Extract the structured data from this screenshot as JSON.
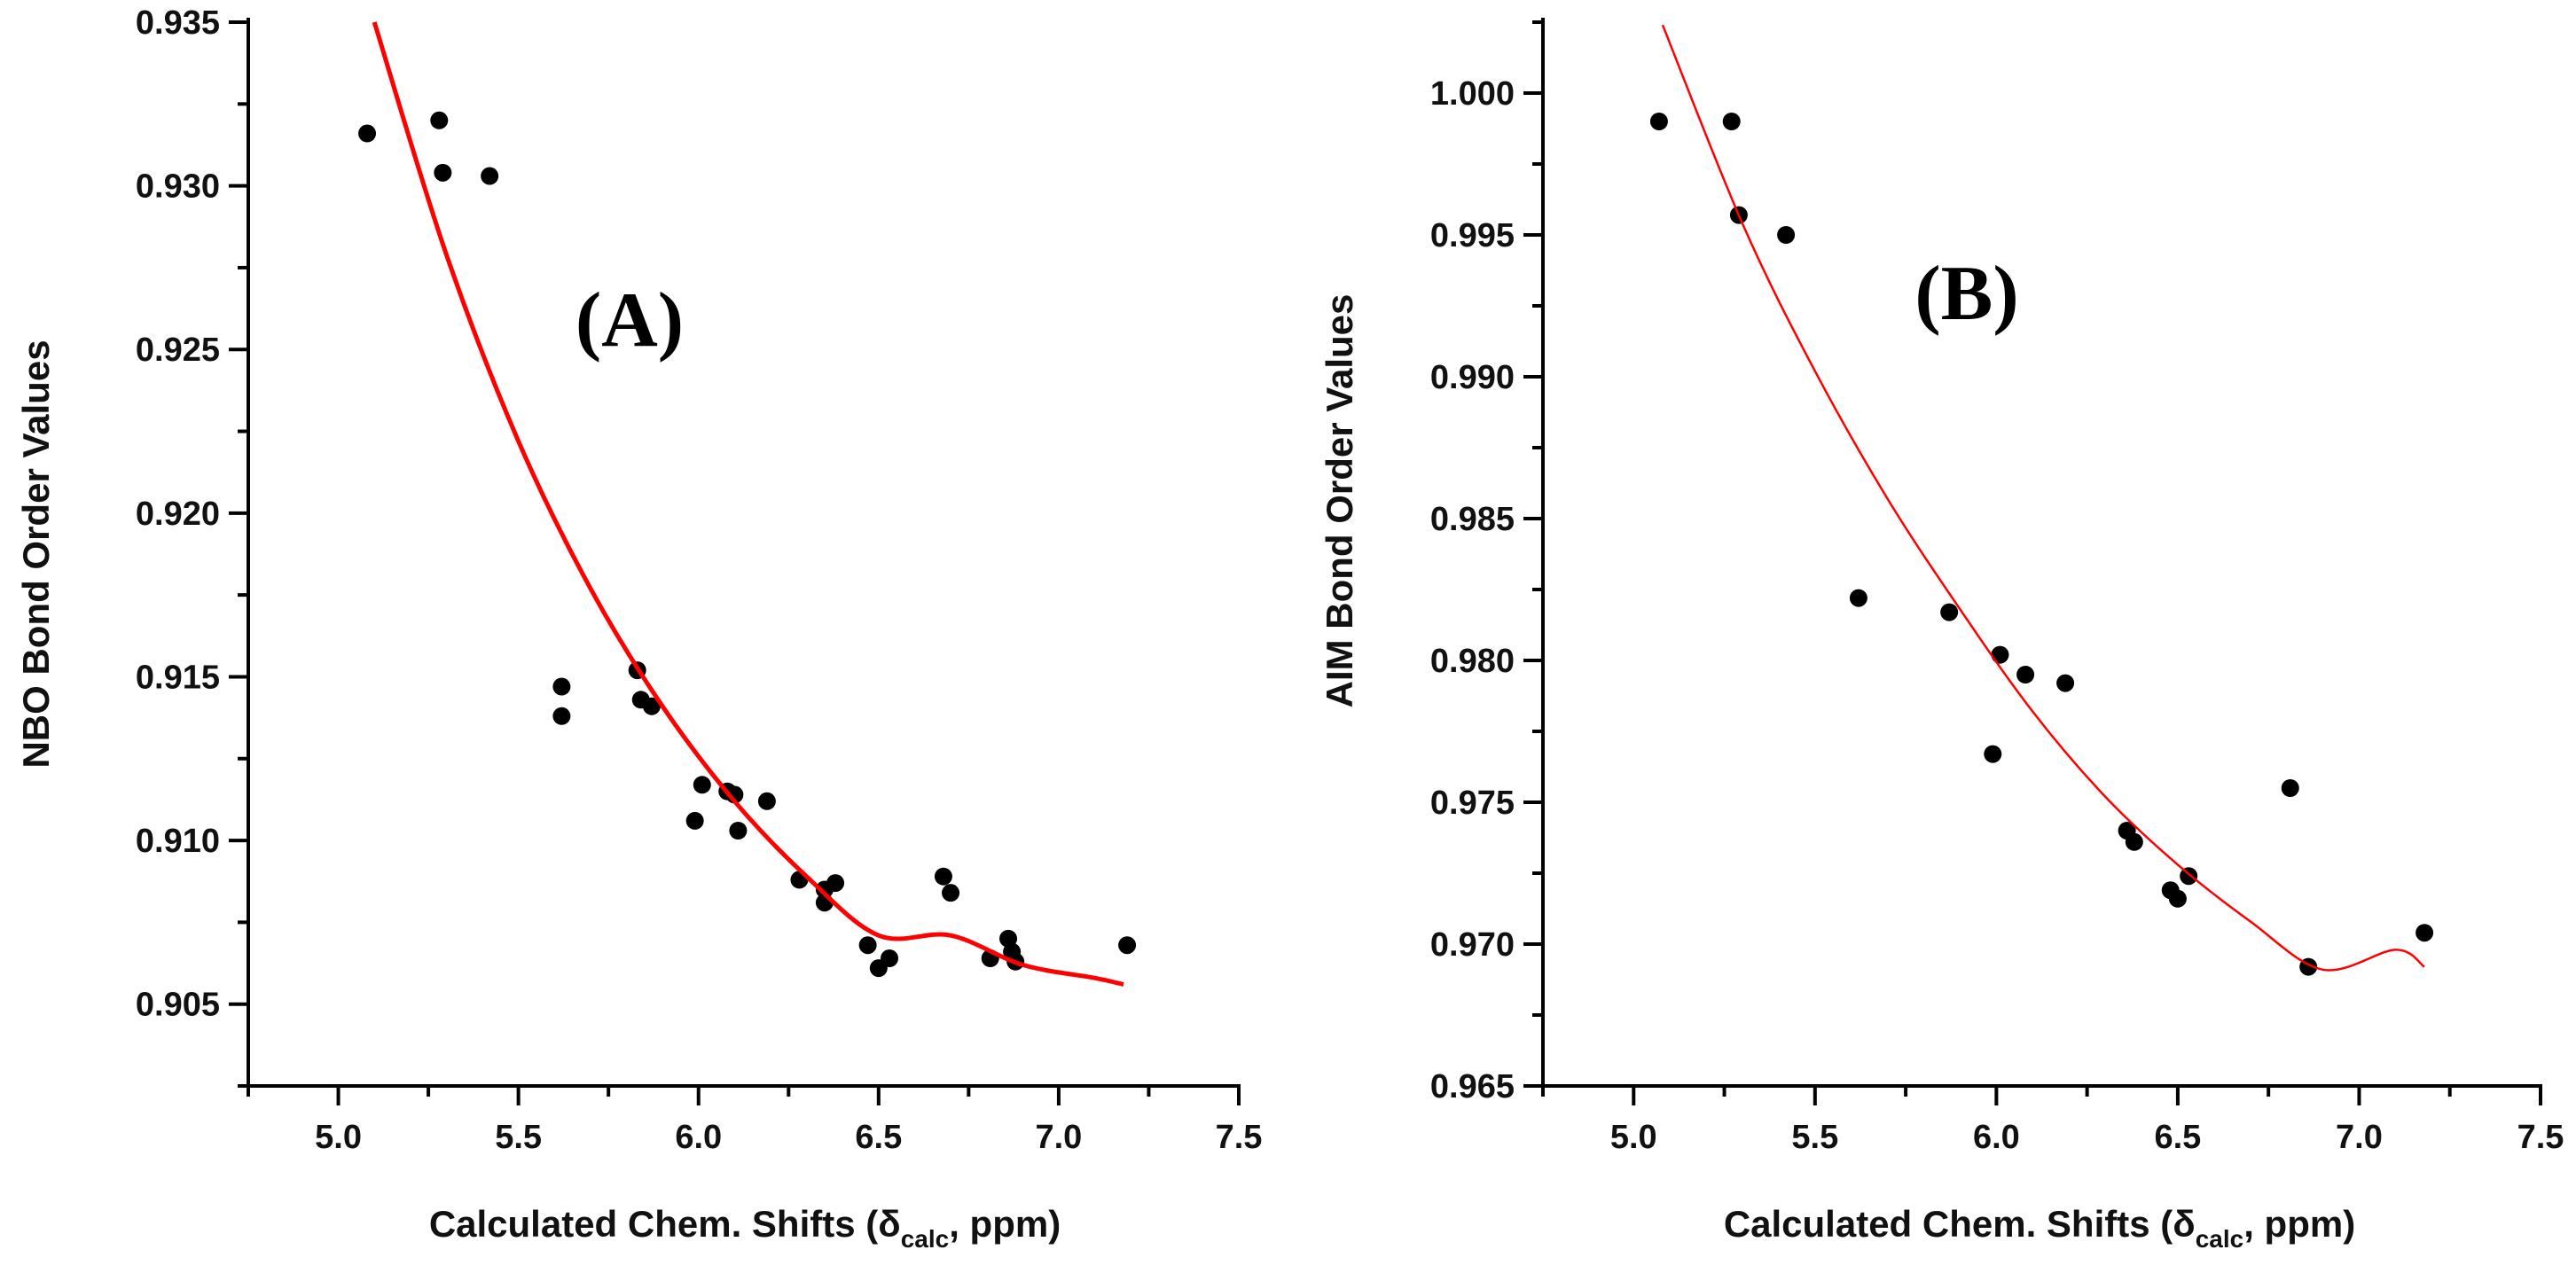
{
  "chart_data": [
    {
      "type": "scatter",
      "panel_label": "(A)",
      "title": "",
      "xlabel": {
        "pre": "Calculated Chem. Shifts (δ",
        "sub": "calc",
        "post": ", ppm)"
      },
      "ylabel": "NBO Bond Order Values",
      "xlim": [
        4.75,
        7.5
      ],
      "ylim": [
        0.9025,
        0.935
      ],
      "xticks": [
        "5.0",
        "5.5",
        "6.0",
        "6.5",
        "7.0",
        "7.5"
      ],
      "xtick_values": [
        5.0,
        5.5,
        6.0,
        6.5,
        7.0,
        7.5
      ],
      "yticks": [
        "0.905",
        "0.910",
        "0.915",
        "0.920",
        "0.925",
        "0.930",
        "0.935"
      ],
      "ytick_values": [
        0.905,
        0.91,
        0.915,
        0.92,
        0.925,
        0.93,
        0.935
      ],
      "grid": false,
      "points": [
        [
          5.08,
          0.9316
        ],
        [
          5.28,
          0.932
        ],
        [
          5.29,
          0.9304
        ],
        [
          5.42,
          0.9303
        ],
        [
          5.62,
          0.9147
        ],
        [
          5.62,
          0.9138
        ],
        [
          5.83,
          0.9152
        ],
        [
          5.84,
          0.9143
        ],
        [
          5.87,
          0.9141
        ],
        [
          5.99,
          0.9106
        ],
        [
          6.01,
          0.9117
        ],
        [
          6.08,
          0.9115
        ],
        [
          6.1,
          0.9114
        ],
        [
          6.11,
          0.9103
        ],
        [
          6.19,
          0.9112
        ],
        [
          6.28,
          0.9088
        ],
        [
          6.35,
          0.9085
        ],
        [
          6.35,
          0.9081
        ],
        [
          6.38,
          0.9087
        ],
        [
          6.47,
          0.9068
        ],
        [
          6.5,
          0.9061
        ],
        [
          6.53,
          0.9064
        ],
        [
          6.68,
          0.9089
        ],
        [
          6.7,
          0.9084
        ],
        [
          6.81,
          0.9064
        ],
        [
          6.86,
          0.907
        ],
        [
          6.87,
          0.9066
        ],
        [
          6.88,
          0.9063
        ],
        [
          7.19,
          0.9068
        ]
      ],
      "fit": {
        "type": "exponential",
        "x": [
          5.1,
          5.3,
          5.5,
          5.7,
          5.9,
          6.1,
          6.3,
          6.5,
          6.7,
          6.9,
          7.1,
          7.18
        ],
        "y": [
          0.935,
          0.9279,
          0.9222,
          0.9177,
          0.9141,
          0.9112,
          0.9089,
          0.9071,
          0.9071,
          0.9062,
          0.9058,
          0.9056
        ],
        "color": "#ff0000"
      }
    },
    {
      "type": "scatter",
      "panel_label": "(B)",
      "title": "",
      "xlabel": {
        "pre": "Calculated Chem. Shifts (δ",
        "sub": "calc",
        "post": ", ppm)"
      },
      "ylabel": "AIM Bond Order Values",
      "xlim": [
        4.75,
        7.5
      ],
      "ylim": [
        0.965,
        1.0025
      ],
      "xticks": [
        "5.0",
        "5.5",
        "6.0",
        "6.5",
        "7.0",
        "7.5"
      ],
      "xtick_values": [
        5.0,
        5.5,
        6.0,
        6.5,
        7.0,
        7.5
      ],
      "yticks": [
        "0.965",
        "0.970",
        "0.975",
        "0.980",
        "0.985",
        "0.990",
        "0.995",
        "1.000"
      ],
      "ytick_values": [
        0.965,
        0.97,
        0.975,
        0.98,
        0.985,
        0.99,
        0.995,
        1.0
      ],
      "grid": false,
      "points": [
        [
          5.07,
          0.999
        ],
        [
          5.27,
          0.999
        ],
        [
          5.29,
          0.9957
        ],
        [
          5.42,
          0.995
        ],
        [
          5.62,
          0.9822
        ],
        [
          5.87,
          0.9817
        ],
        [
          5.99,
          0.9767
        ],
        [
          6.01,
          0.9802
        ],
        [
          6.08,
          0.9795
        ],
        [
          6.19,
          0.9792
        ],
        [
          6.36,
          0.974
        ],
        [
          6.38,
          0.9736
        ],
        [
          6.48,
          0.9719
        ],
        [
          6.5,
          0.9716
        ],
        [
          6.53,
          0.9724
        ],
        [
          6.81,
          0.9755
        ],
        [
          6.86,
          0.9692
        ],
        [
          7.18,
          0.9704
        ]
      ],
      "fit": {
        "type": "exponential",
        "x": [
          5.08,
          5.3,
          5.5,
          5.7,
          5.9,
          6.1,
          6.3,
          6.5,
          6.7,
          6.9,
          7.1,
          7.18
        ],
        "y": [
          1.0024,
          0.9954,
          0.9902,
          0.9857,
          0.9818,
          0.9782,
          0.9752,
          0.9728,
          0.9708,
          0.9691,
          0.9698,
          0.9692
        ],
        "color": "#ff0000"
      }
    }
  ]
}
